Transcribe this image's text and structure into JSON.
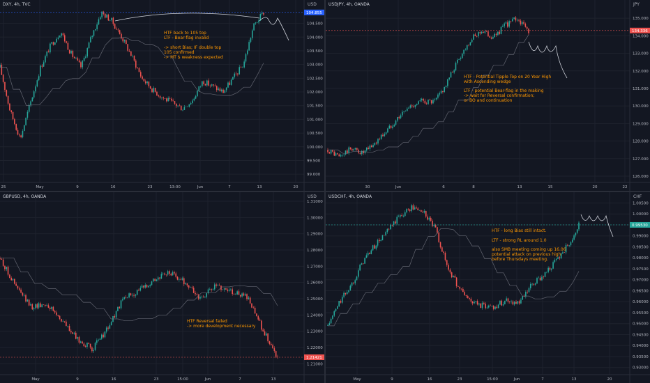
{
  "colors": {
    "background": "#131722",
    "grid": "#1e222d",
    "up": "#26a69a",
    "down": "#ef5350",
    "axis_text": "#b2b5be",
    "note": "#ff9800"
  },
  "panels": [
    {
      "id": "dxy",
      "title": "DXY, 4h, TVC",
      "currency": "USD",
      "price_label": "104.855",
      "price_label_color": "#2962ff",
      "y_ticks": [
        "104.500",
        "104.000",
        "103.500",
        "103.000",
        "102.500",
        "102.000",
        "101.500",
        "101.000",
        "100.500",
        "100.000",
        "99.500",
        "99.000"
      ],
      "y_range": [
        98.8,
        105.2
      ],
      "x_ticks": [
        "25",
        "May",
        "9",
        "16",
        "23",
        "13:00",
        "Jun",
        "7",
        "13",
        "20"
      ],
      "notes": [
        "HTF back to 105 top\nLTF - Bear-flag invalid\n\n-> short Bias; IF double top\n105 confirmed\n-> MT $ weakness expected"
      ]
    },
    {
      "id": "usdjpy",
      "title": "USDJPY, 4h, OANDA",
      "currency": "JPY",
      "price_label": "134.336",
      "price_label_color": "#ef5350",
      "y_ticks": [
        "135.000",
        "134.000",
        "133.000",
        "132.000",
        "131.000",
        "130.000",
        "129.000",
        "128.000",
        "127.000",
        "126.000"
      ],
      "y_range": [
        125.8,
        135.8
      ],
      "x_ticks": [
        "30",
        "Jun",
        "6",
        "8",
        "13",
        "15",
        "20",
        "22"
      ],
      "notes": [
        "HTF - Potential Tipple Top on 20 Year High\nwith Ascending wedge",
        "LTF - potential Bear-flag in the making\n-> wait for Reversal confirmation;\nor BO and continuation"
      ]
    },
    {
      "id": "gbpusd",
      "title": "GBPUSD, 4h, OANDA",
      "currency": "USD",
      "price_label": "1.21421",
      "price_label_color": "#ef5350",
      "y_ticks": [
        "1.31000",
        "1.30000",
        "1.29000",
        "1.28000",
        "1.27000",
        "1.26000",
        "1.25000",
        "1.24000",
        "1.23000",
        "1.22000",
        "1.21000"
      ],
      "y_range": [
        1.205,
        1.313
      ],
      "x_ticks": [
        "May",
        "9",
        "16",
        "23",
        "15:00",
        "Jun",
        "7",
        "13"
      ],
      "notes": [
        "HTF Reversal failed\n-> more development necessary"
      ]
    },
    {
      "id": "usdchf",
      "title": "USDCHF, 4h, OANDA",
      "currency": "CHF",
      "price_label": "0.99530",
      "price_label_color": "#26a69a",
      "y_ticks": [
        "1.00500",
        "1.00000",
        "0.99500",
        "0.99000",
        "0.98500",
        "0.98000",
        "0.97500",
        "0.97000",
        "0.96500",
        "0.96000",
        "0.95500",
        "0.95000",
        "0.94500",
        "0.94000",
        "0.93500",
        "0.93000"
      ],
      "y_range": [
        0.928,
        1.008
      ],
      "x_ticks": [
        "May",
        "9",
        "16",
        "23",
        "15:00",
        "Jun",
        "7",
        "13",
        "20"
      ],
      "notes": [
        "HTF - long Bias still intact.",
        "LTF - strong RL around 1.0",
        "also SMB meeting coming up 16.06\npotential attack on previous high\nbefore Thursdays meeting."
      ]
    }
  ],
  "chart_data": [
    {
      "type": "line",
      "series": [
        {
          "values": [
            102.9,
            101.3,
            100.3,
            101.6,
            102.9,
            103.7,
            104.2,
            103.4,
            102.9,
            104.0,
            104.9,
            104.6,
            104.0,
            103.3,
            102.5,
            102.1,
            101.8,
            101.6,
            101.4,
            101.7,
            102.4,
            102.2,
            102.0,
            102.5,
            103.0,
            104.4,
            104.9
          ]
        }
      ]
    },
    {
      "type": "line",
      "series": [
        {
          "values": [
            127.5,
            127.1,
            127.6,
            127.3,
            127.9,
            128.6,
            129.4,
            130.0,
            130.3,
            130.2,
            131.2,
            132.6,
            133.7,
            134.3,
            133.9,
            134.6,
            135.0,
            134.3
          ]
        }
      ]
    },
    {
      "type": "line",
      "series": [
        {
          "values": [
            1.275,
            1.258,
            1.245,
            1.247,
            1.237,
            1.225,
            1.219,
            1.232,
            1.25,
            1.255,
            1.262,
            1.266,
            1.26,
            1.25,
            1.258,
            1.255,
            1.251,
            1.232,
            1.214
          ]
        }
      ]
    },
    {
      "type": "line",
      "series": [
        {
          "values": [
            0.949,
            0.96,
            0.968,
            0.979,
            0.986,
            0.992,
            0.999,
            1.003,
            1.001,
            0.993,
            0.976,
            0.966,
            0.96,
            0.958,
            0.958,
            0.961,
            0.959,
            0.967,
            0.972,
            0.978,
            0.985,
            0.995
          ]
        }
      ]
    }
  ]
}
